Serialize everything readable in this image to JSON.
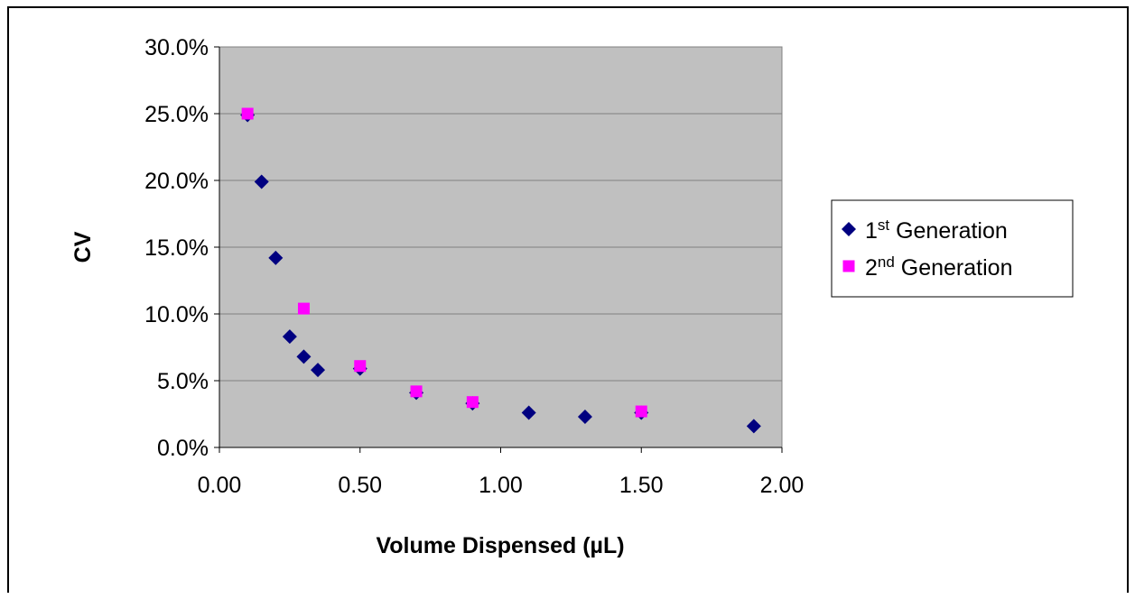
{
  "chart_data": {
    "type": "scatter",
    "xlabel": "Volume Dispensed (µL)",
    "ylabel": "CV",
    "xlim": [
      0,
      2
    ],
    "ylim": [
      0,
      0.3
    ],
    "x_ticks": [
      "0.00",
      "0.50",
      "1.00",
      "1.50",
      "2.00"
    ],
    "y_ticks": [
      "0.0%",
      "5.0%",
      "10.0%",
      "15.0%",
      "20.0%",
      "25.0%",
      "30.0%"
    ],
    "x_tick_values": [
      0,
      0.5,
      1.0,
      1.5,
      2.0
    ],
    "y_tick_values": [
      0,
      0.05,
      0.1,
      0.15,
      0.2,
      0.25,
      0.3
    ],
    "grid": true,
    "legend_position": "right",
    "plot_background": "#c0c0c0",
    "series": [
      {
        "name_base": "1",
        "name_sup": "st",
        "name_rest": " Generation",
        "marker": "diamond",
        "color": "#000080",
        "points": [
          {
            "x": 0.1,
            "y": 0.249
          },
          {
            "x": 0.15,
            "y": 0.199
          },
          {
            "x": 0.2,
            "y": 0.142
          },
          {
            "x": 0.25,
            "y": 0.083
          },
          {
            "x": 0.3,
            "y": 0.068
          },
          {
            "x": 0.35,
            "y": 0.058
          },
          {
            "x": 0.5,
            "y": 0.059
          },
          {
            "x": 0.7,
            "y": 0.041
          },
          {
            "x": 0.9,
            "y": 0.033
          },
          {
            "x": 1.1,
            "y": 0.026
          },
          {
            "x": 1.3,
            "y": 0.023
          },
          {
            "x": 1.5,
            "y": 0.026
          },
          {
            "x": 1.9,
            "y": 0.016
          }
        ]
      },
      {
        "name_base": "2",
        "name_sup": "nd",
        "name_rest": " Generation",
        "marker": "square",
        "color": "#ff00ff",
        "points": [
          {
            "x": 0.1,
            "y": 0.25
          },
          {
            "x": 0.3,
            "y": 0.104
          },
          {
            "x": 0.5,
            "y": 0.061
          },
          {
            "x": 0.7,
            "y": 0.042
          },
          {
            "x": 0.9,
            "y": 0.034
          },
          {
            "x": 1.5,
            "y": 0.027
          }
        ]
      }
    ]
  }
}
